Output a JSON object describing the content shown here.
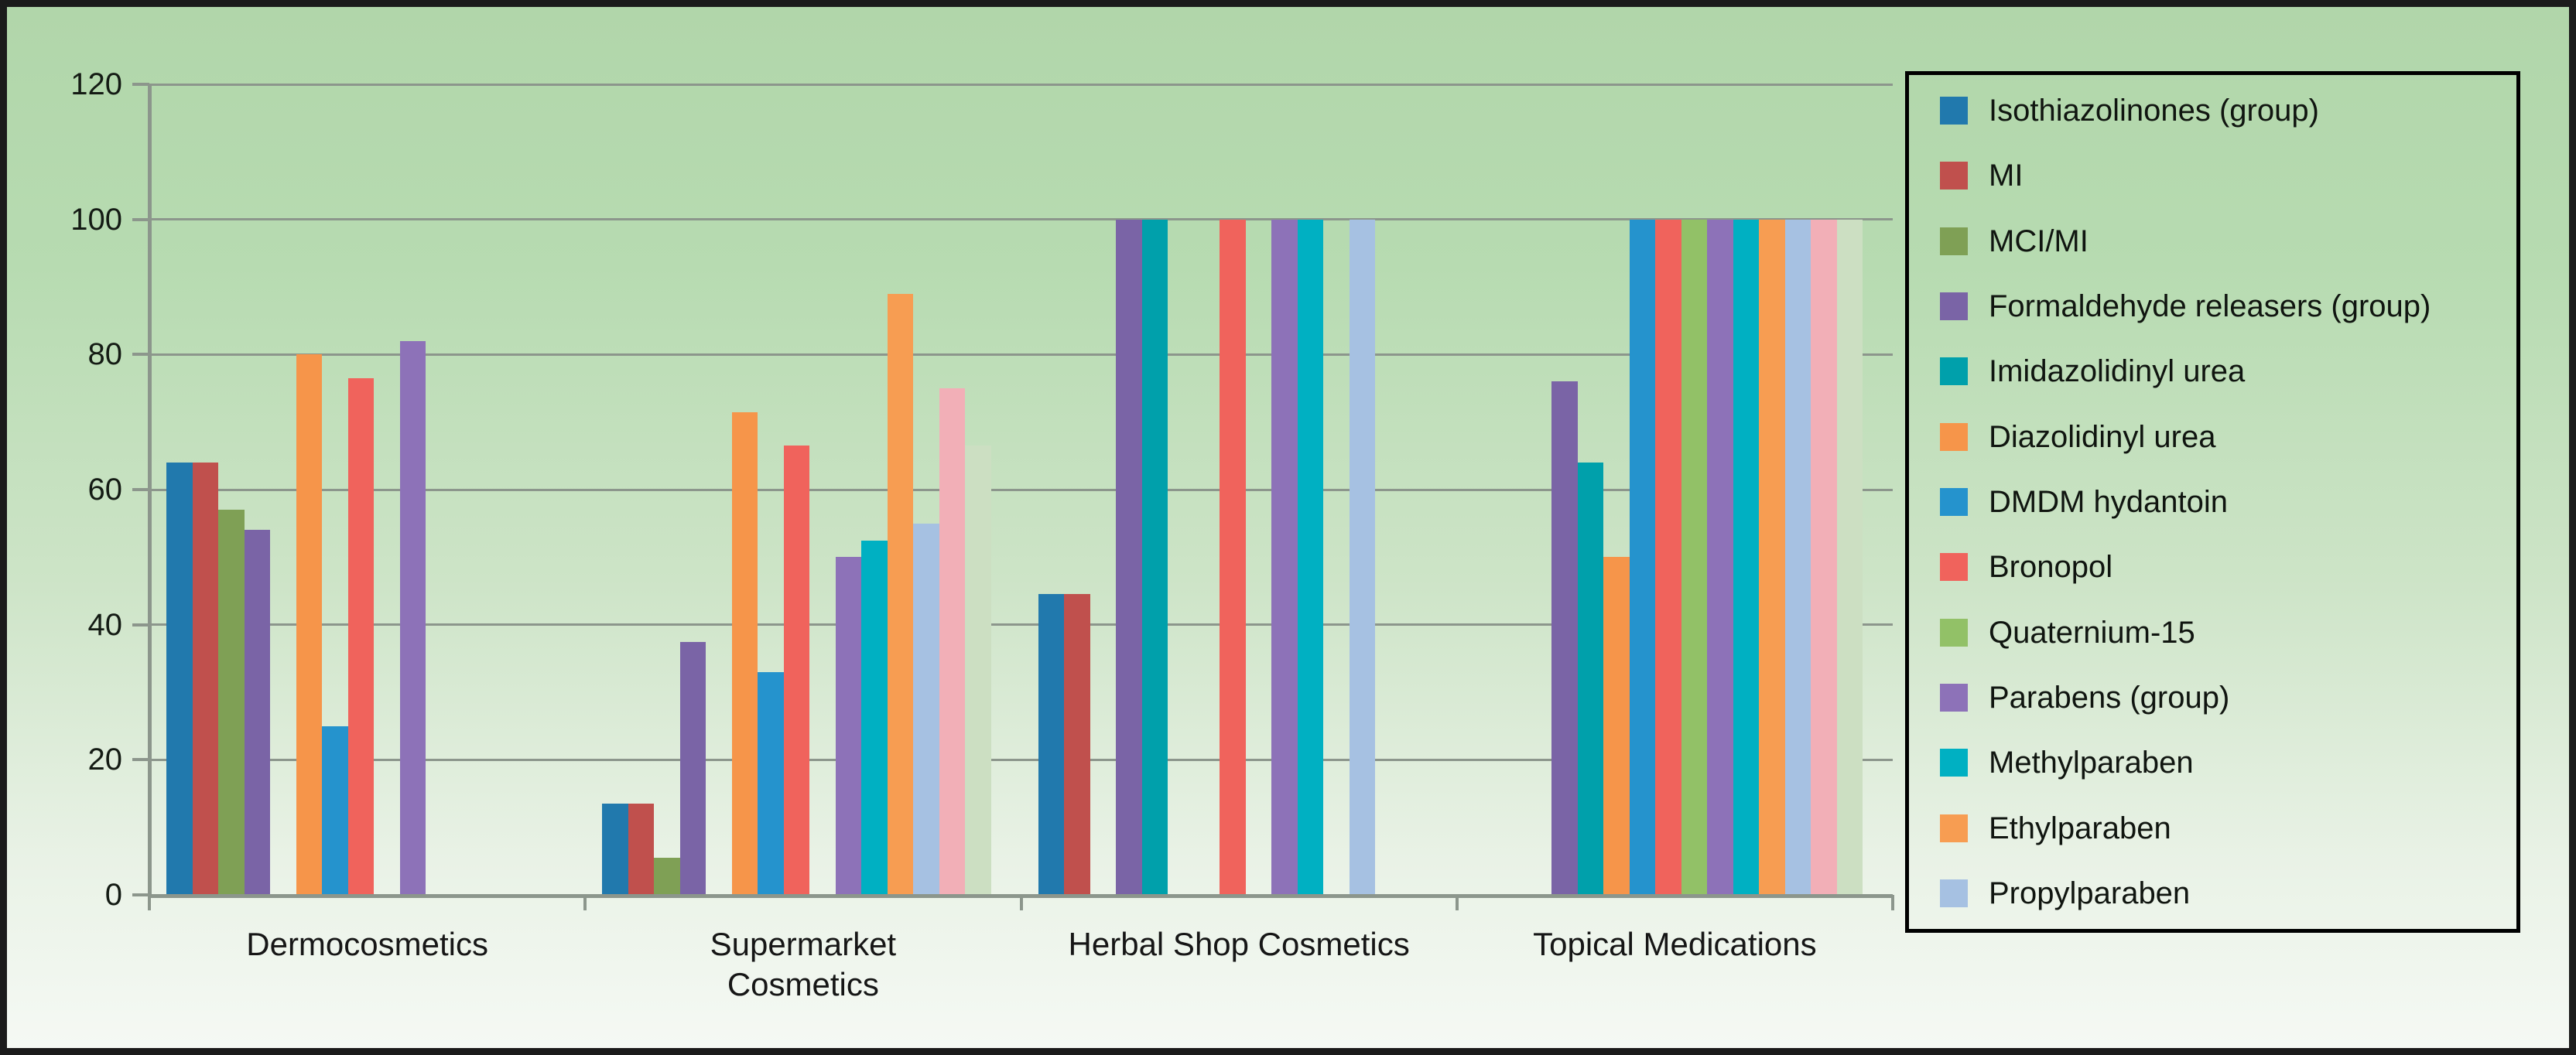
{
  "chart_data": {
    "type": "bar",
    "title": "",
    "xlabel": "",
    "ylabel": "",
    "ylim": [
      0,
      120
    ],
    "y_ticks": [
      0,
      20,
      40,
      60,
      80,
      100,
      120
    ],
    "grid": "horizontal",
    "legend_position": "right",
    "categories": [
      "Dermocosmetics",
      "Supermarket Cosmetics",
      "Herbal Shop Cosmetics",
      "Topical Medications"
    ],
    "category_label_lines": [
      [
        "Dermocosmetics"
      ],
      [
        "Supermarket",
        "Cosmetics"
      ],
      [
        "Herbal Shop Cosmetics"
      ],
      [
        "Topical Medications"
      ]
    ],
    "series": [
      {
        "name": "Isothiazolinones (group)",
        "color": "#2179ad",
        "in_legend": true,
        "values": [
          64,
          13.5,
          44.5,
          0
        ]
      },
      {
        "name": "MI",
        "color": "#c0504d",
        "in_legend": true,
        "values": [
          64,
          13.5,
          44.5,
          0
        ]
      },
      {
        "name": "MCI/MI",
        "color": "#7fa055",
        "in_legend": true,
        "values": [
          57,
          5.5,
          0,
          0
        ]
      },
      {
        "name": "Formaldehyde releasers (group)",
        "color": "#7a64a6",
        "in_legend": true,
        "values": [
          54,
          37.5,
          100,
          76
        ]
      },
      {
        "name": "Imidazolidinyl urea",
        "color": "#00a0ab",
        "in_legend": true,
        "values": [
          0,
          0,
          100,
          64
        ]
      },
      {
        "name": "Diazolidinyl urea",
        "color": "#f6954a",
        "in_legend": true,
        "values": [
          80,
          71.5,
          0,
          50
        ]
      },
      {
        "name": "DMDM hydantoin",
        "color": "#2593cd",
        "in_legend": true,
        "values": [
          25,
          33,
          0,
          100
        ]
      },
      {
        "name": "Bronopol",
        "color": "#f0635c",
        "in_legend": true,
        "values": [
          76.5,
          66.5,
          100,
          100
        ]
      },
      {
        "name": "Quaternium-15",
        "color": "#92c167",
        "in_legend": true,
        "values": [
          0,
          0,
          0,
          100
        ]
      },
      {
        "name": "Parabens (group)",
        "color": "#8d72b8",
        "in_legend": true,
        "values": [
          82,
          50,
          100,
          100
        ]
      },
      {
        "name": "Methylparaben",
        "color": "#00b0c2",
        "in_legend": true,
        "values": [
          0,
          52.5,
          100,
          100
        ]
      },
      {
        "name": "Ethylparaben",
        "color": "#f79d52",
        "in_legend": true,
        "values": [
          0,
          89,
          0,
          100
        ]
      },
      {
        "name": "Propylparaben",
        "color": "#a6c1e2",
        "in_legend": true,
        "values": [
          0,
          55,
          100,
          100
        ]
      },
      {
        "name": "",
        "color": "#f2afb7",
        "in_legend": false,
        "values": [
          0,
          75,
          0,
          100
        ]
      },
      {
        "name": "",
        "color": "#ccdfc2",
        "in_legend": false,
        "values": [
          0,
          66.5,
          0,
          100
        ]
      }
    ]
  },
  "style": {
    "background_top": "#b1d6aa",
    "background_bottom": "#f5f9f4",
    "gridline_color": "#8c968c",
    "axis_color": "#8c968c",
    "text_color": "#141b14",
    "legend_border_color": "#000000",
    "frame_color": "#1b1b1b"
  }
}
